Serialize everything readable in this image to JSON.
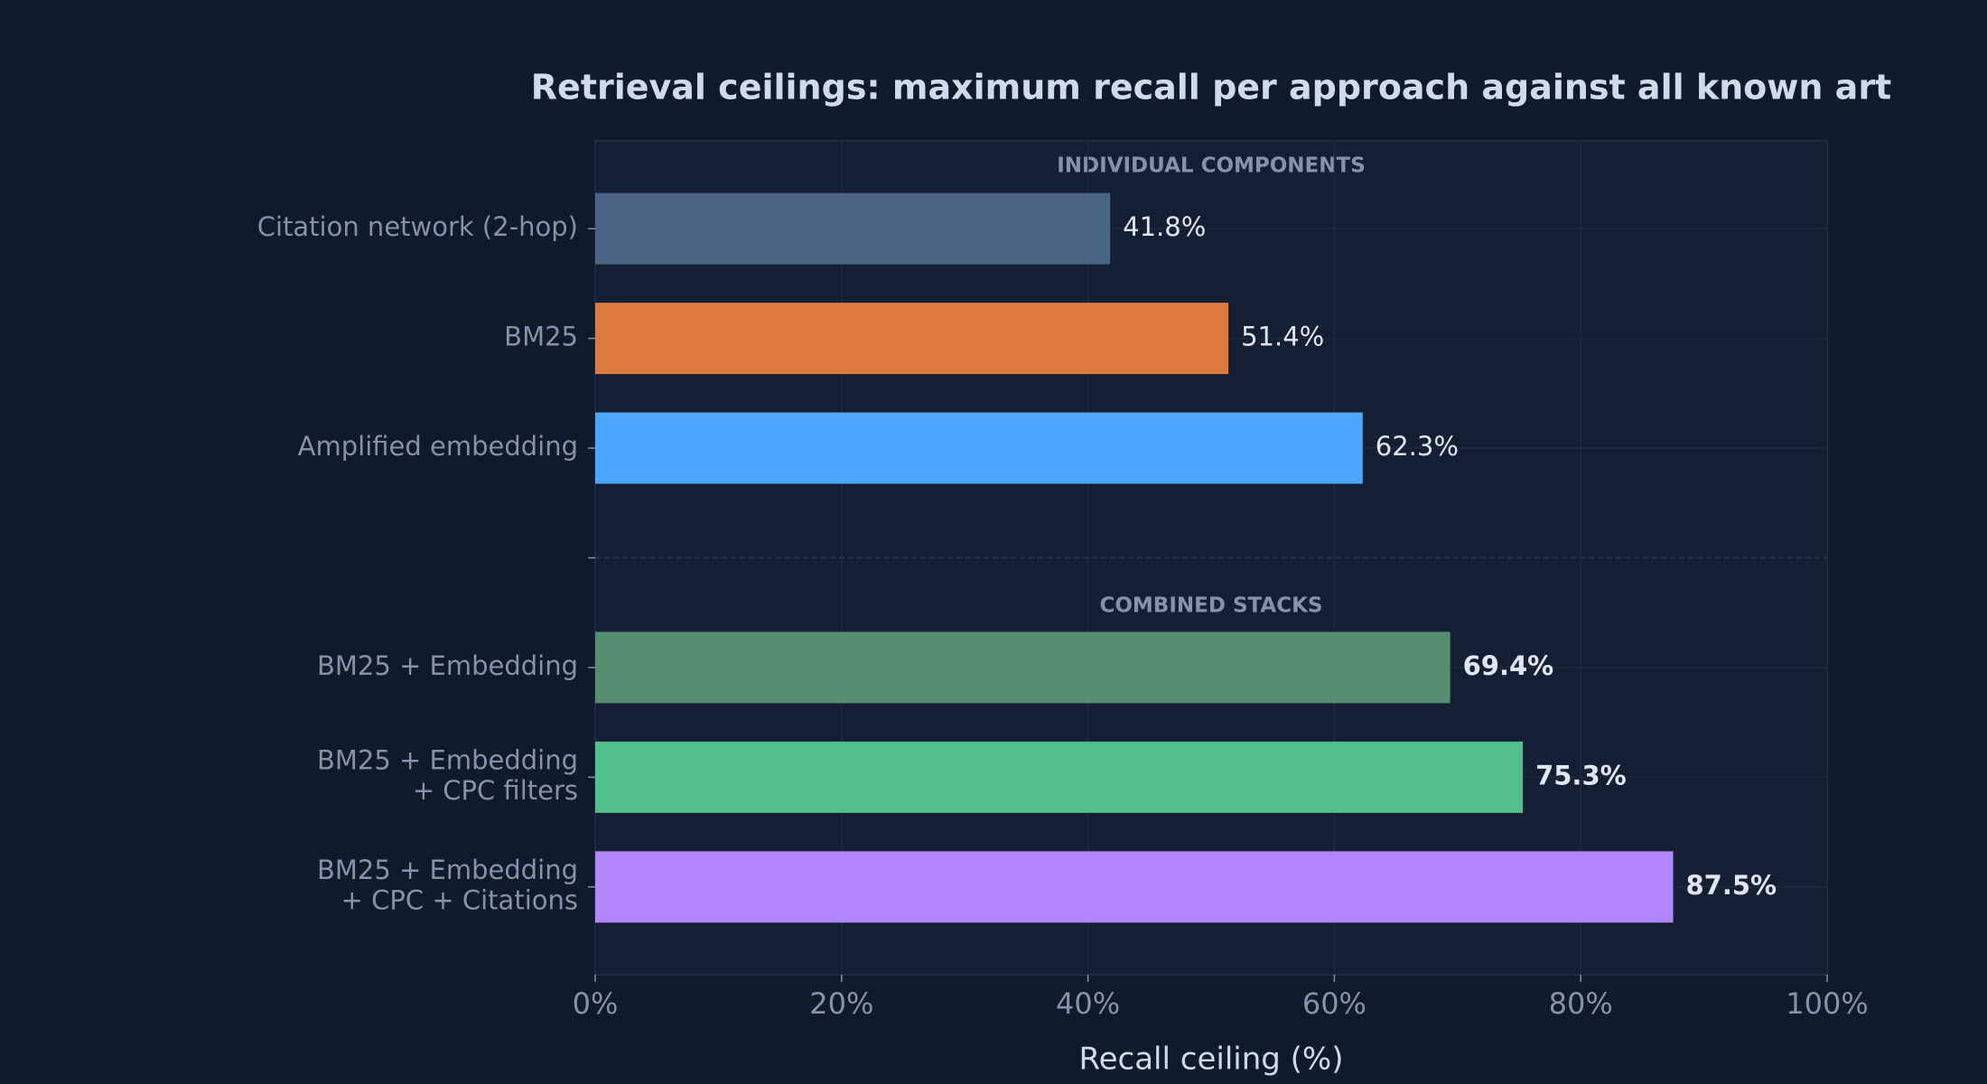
{
  "chart_data": {
    "type": "barh",
    "title": "Retrieval ceilings: maximum recall per approach against all known art",
    "annotations": [
      "INDIVIDUAL COMPONENTS",
      "COMBINED STACKS"
    ],
    "xlabel": "Recall ceiling (%)",
    "categories": [
      "Citation network (2-hop)",
      "BM25",
      "Amplified embedding",
      null,
      "BM25 + Embedding",
      "BM25 + Embedding\n+ CPC filters",
      "BM25 + Embedding\n+ CPC + Citations"
    ],
    "values": [
      41.8,
      51.4,
      62.3,
      null,
      69.4,
      75.3,
      87.5
    ],
    "value_labels": [
      "41.8%",
      "51.4%",
      "62.3%",
      null,
      "69.4%",
      "75.3%",
      "87.5%"
    ],
    "colors": [
      "#4a6583",
      "#dd7b3e",
      "#4da6ff",
      null,
      "#558f70",
      "#52c08a",
      "#b388ff"
    ],
    "xlim": [
      0,
      100
    ],
    "xticks": [
      {
        "value": 0,
        "label": "0%"
      },
      {
        "value": 20,
        "label": "20%"
      },
      {
        "value": 40,
        "label": "40%"
      },
      {
        "value": 60,
        "label": "60%"
      },
      {
        "value": 80,
        "label": "80%"
      },
      {
        "value": 100,
        "label": "100%"
      }
    ],
    "grid": true
  }
}
